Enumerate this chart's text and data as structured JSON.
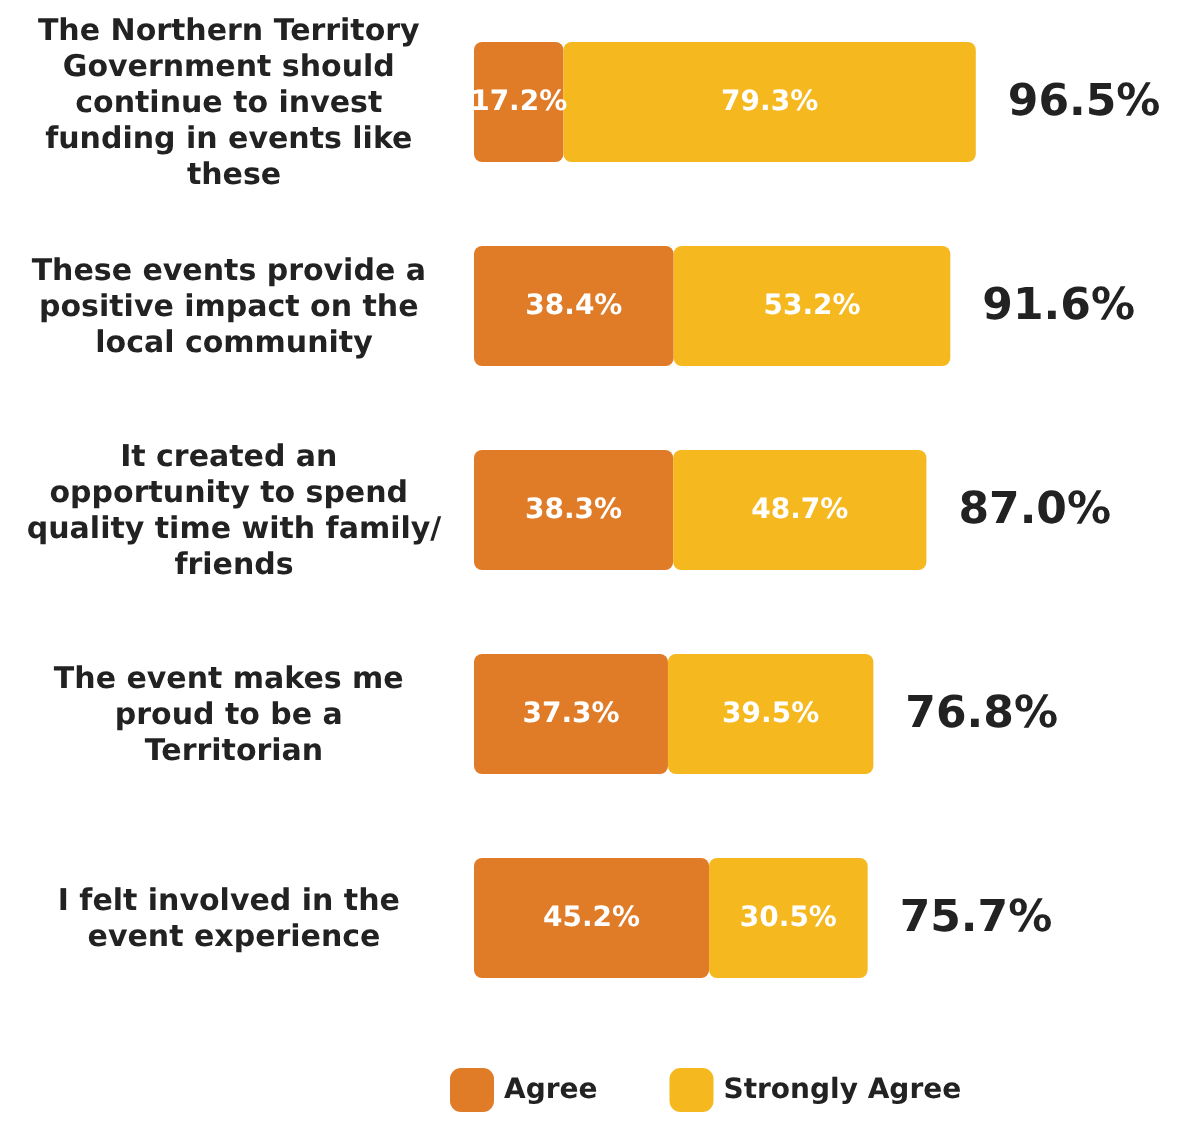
{
  "chart_data": {
    "type": "bar",
    "orientation": "horizontal",
    "stacked": true,
    "legend": "bottom",
    "categories": [
      "The Northern Territory Government should continue to invest funding in events like these",
      "These events provide a positive impact on the local community",
      "It created an opportunity to spend quality time with family/friends",
      "The event makes me proud to be a Territorian",
      "I felt involved in the event experience"
    ],
    "series": [
      {
        "name": "Agree",
        "color": "#e07b27",
        "values": [
          17.2,
          38.4,
          38.3,
          37.3,
          45.2
        ],
        "value_labels": [
          "17.2%",
          "38.4%",
          "38.3%",
          "37.3%",
          "45.2%"
        ]
      },
      {
        "name": "Strongly Agree",
        "color": "#f5b81f",
        "values": [
          79.3,
          53.2,
          48.7,
          39.5,
          30.5
        ],
        "value_labels": [
          "79.3%",
          "53.2%",
          "48.7%",
          "39.5%",
          "30.5%"
        ]
      }
    ],
    "totals": [
      "96.5%",
      "91.6%",
      "87.0%",
      "76.8%",
      "75.7%"
    ]
  }
}
